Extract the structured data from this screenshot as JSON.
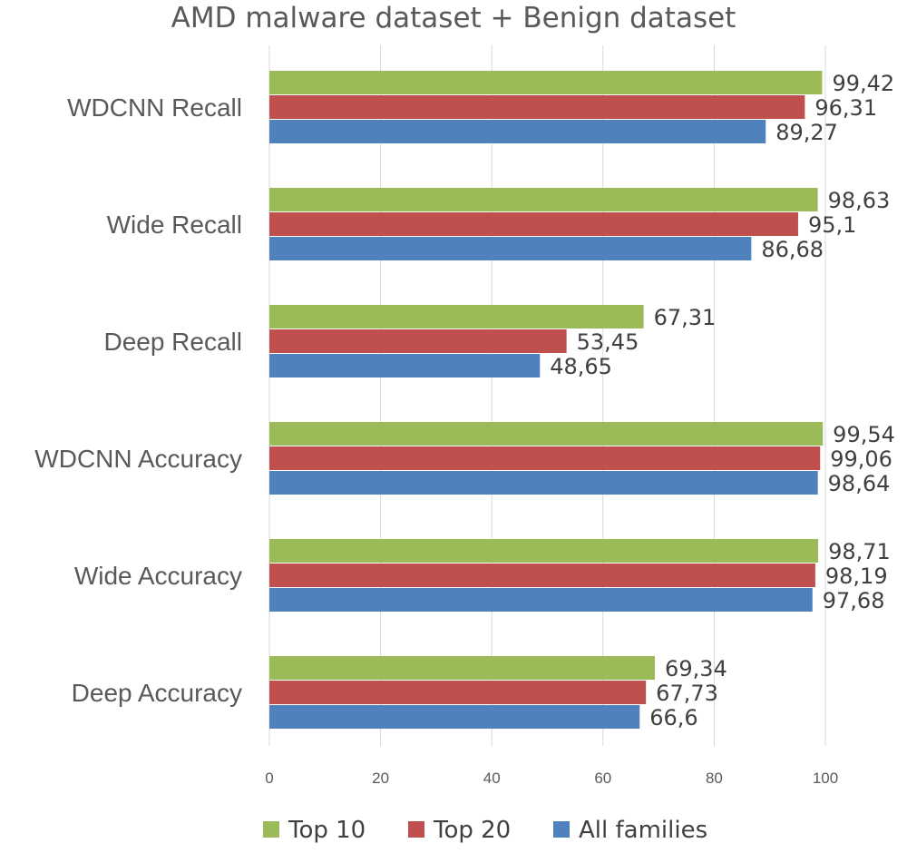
{
  "chart_data": {
    "type": "bar",
    "orientation": "horizontal",
    "title": "AMD malware dataset + Benign dataset",
    "categories": [
      "WDCNN Recall",
      "Wide Recall",
      "Deep Recall",
      "WDCNN Accuracy",
      "Wide Accuracy",
      "Deep Accuracy"
    ],
    "series": [
      {
        "name": "Top 10",
        "color": "#9bbb59",
        "values": [
          99.42,
          98.63,
          67.31,
          99.54,
          98.71,
          69.34
        ],
        "labels": [
          "99,42",
          "98,63",
          "67,31",
          "99,54",
          "98,71",
          "69,34"
        ]
      },
      {
        "name": "Top 20",
        "color": "#c0504d",
        "values": [
          96.31,
          95.1,
          53.45,
          99.06,
          98.19,
          67.73
        ],
        "labels": [
          "96,31",
          "95,1",
          "53,45",
          "99,06",
          "98,19",
          "67,73"
        ]
      },
      {
        "name": "All families",
        "color": "#4f81bd",
        "values": [
          89.27,
          86.68,
          48.65,
          98.64,
          97.68,
          66.6
        ],
        "labels": [
          "89,27",
          "86,68",
          "48,65",
          "98,64",
          "97,68",
          "66,6"
        ]
      }
    ],
    "xlim": [
      0,
      100
    ],
    "xticks": [
      0,
      20,
      40,
      60,
      80,
      100
    ],
    "grid": true,
    "legend_position": "bottom"
  }
}
